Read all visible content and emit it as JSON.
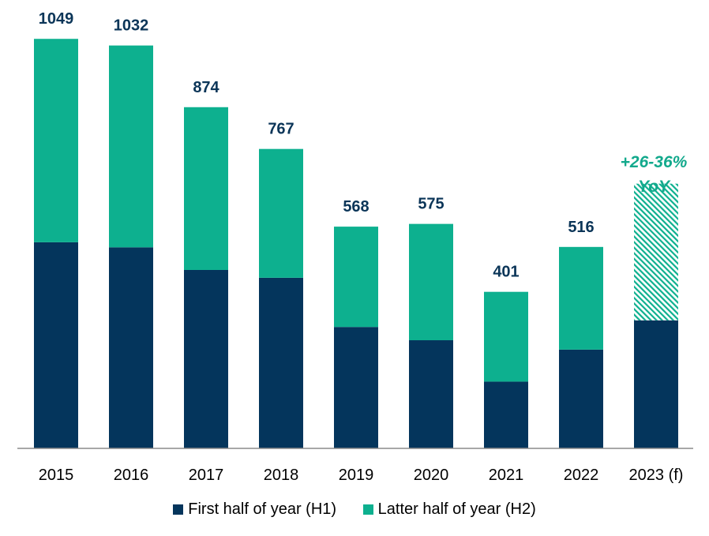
{
  "chart_data": {
    "type": "bar",
    "stacked": true,
    "categories": [
      "2015",
      "2016",
      "2017",
      "2018",
      "2019",
      "2020",
      "2021",
      "2022",
      "2023 (f)"
    ],
    "series": [
      {
        "name": "First half of year (H1)",
        "color": "#04355c",
        "values": [
          528,
          515,
          457,
          437,
          311,
          277,
          171,
          253,
          328
        ]
      },
      {
        "name": "Latter half of year (H2)",
        "color": "#0db08f",
        "values": [
          521,
          517,
          417,
          330,
          257,
          298,
          230,
          263,
          350
        ],
        "forecast_hatched": [
          false,
          false,
          false,
          false,
          false,
          false,
          false,
          false,
          true
        ]
      }
    ],
    "totals": [
      "1049",
      "1032",
      "874",
      "767",
      "568",
      "575",
      "401",
      "516",
      ""
    ],
    "annotation": {
      "line1": "+26-36%",
      "line2": "YoY"
    },
    "ylim": [
      0,
      1100
    ],
    "grid": false,
    "legend_position": "bottom",
    "xlabel": "",
    "ylabel": ""
  }
}
